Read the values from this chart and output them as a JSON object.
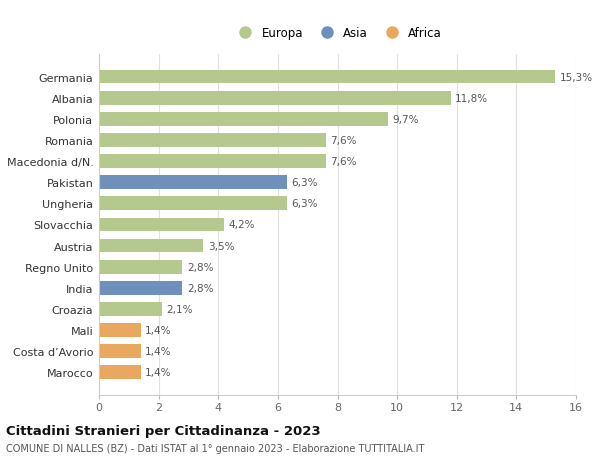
{
  "categories": [
    "Germania",
    "Albania",
    "Polonia",
    "Romania",
    "Macedonia d/N.",
    "Pakistan",
    "Ungheria",
    "Slovacchia",
    "Austria",
    "Regno Unito",
    "India",
    "Croazia",
    "Mali",
    "Costa d’Avorio",
    "Marocco"
  ],
  "values": [
    15.3,
    11.8,
    9.7,
    7.6,
    7.6,
    6.3,
    6.3,
    4.2,
    3.5,
    2.8,
    2.8,
    2.1,
    1.4,
    1.4,
    1.4
  ],
  "labels": [
    "15,3%",
    "11,8%",
    "9,7%",
    "7,6%",
    "7,6%",
    "6,3%",
    "6,3%",
    "4,2%",
    "3,5%",
    "2,8%",
    "2,8%",
    "2,1%",
    "1,4%",
    "1,4%",
    "1,4%"
  ],
  "continents": [
    "Europa",
    "Europa",
    "Europa",
    "Europa",
    "Europa",
    "Asia",
    "Europa",
    "Europa",
    "Europa",
    "Europa",
    "Asia",
    "Europa",
    "Africa",
    "Africa",
    "Africa"
  ],
  "colors": {
    "Europa": "#b5c98e",
    "Asia": "#7090bc",
    "Africa": "#e8a860"
  },
  "legend_colors": {
    "Europa": "#b5c98e",
    "Asia": "#6e8ec0",
    "Africa": "#e8a860"
  },
  "xlim": [
    0,
    16
  ],
  "xticks": [
    0,
    2,
    4,
    6,
    8,
    10,
    12,
    14,
    16
  ],
  "title": "Cittadini Stranieri per Cittadinanza - 2023",
  "subtitle": "COMUNE DI NALLES (BZ) - Dati ISTAT al 1° gennaio 2023 - Elaborazione TUTTITALIA.IT",
  "background_color": "#ffffff",
  "grid_color": "#e0e0e0",
  "bar_height": 0.65
}
